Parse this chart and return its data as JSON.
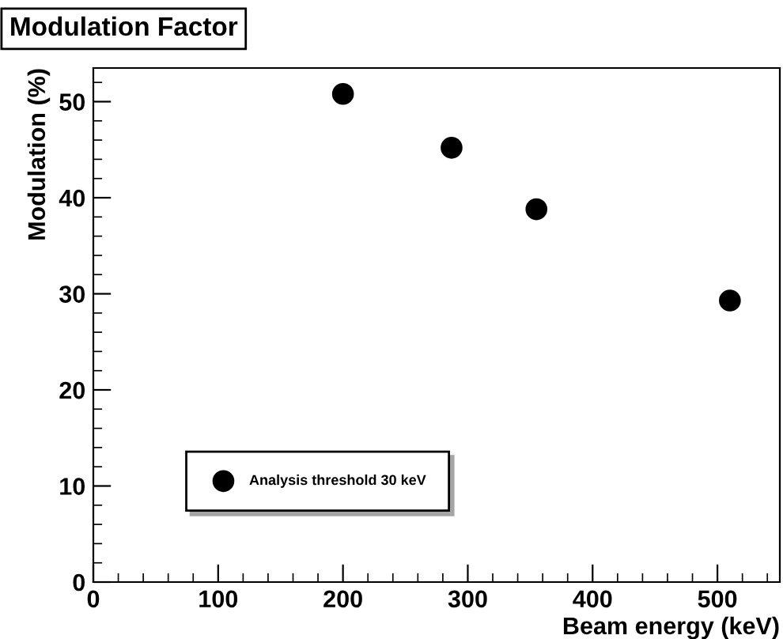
{
  "chart_data": {
    "type": "scatter",
    "title": "Modulation Factor",
    "xlabel": "Beam energy (keV)",
    "ylabel": "Modulation (%)",
    "x": [
      200,
      287,
      355,
      510
    ],
    "series": [
      {
        "name": "Analysis threshold 30 keV",
        "color": "#000000",
        "values": [
          50.8,
          45.2,
          38.8,
          29.3
        ]
      }
    ],
    "xlim": [
      0,
      550
    ],
    "ylim": [
      0,
      53.5
    ],
    "xticks": [
      0,
      100,
      200,
      300,
      400,
      500
    ],
    "yticks": [
      0,
      10,
      20,
      30,
      40,
      50
    ],
    "marker": "circle",
    "legend": "bottom left",
    "grid": false
  }
}
